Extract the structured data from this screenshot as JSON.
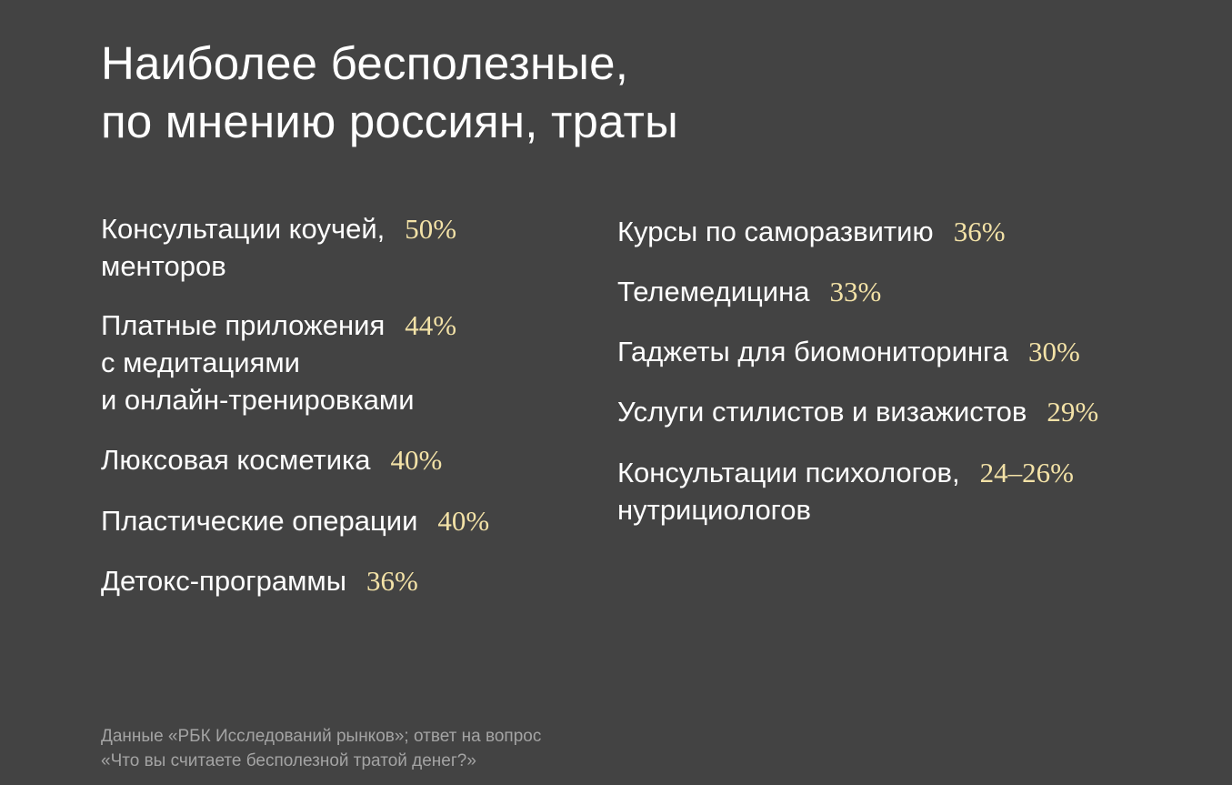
{
  "title": {
    "line1": "Наиболее бесполезные,",
    "line2": "по мнению россиян, траты"
  },
  "left_items": [
    {
      "line1": "Консультации коучей,",
      "line2": "менторов",
      "value": "50%"
    },
    {
      "line1": "Платные приложения",
      "line2": "с медитациями",
      "line3": "и онлайн-тренировками",
      "value": "44%"
    },
    {
      "line1": "Люксовая косметика",
      "value": "40%"
    },
    {
      "line1": "Пластические операции",
      "value": "40%"
    },
    {
      "line1": "Детокс-программы",
      "value": "36%"
    }
  ],
  "right_items": [
    {
      "line1": "Курсы по саморазвитию",
      "value": "36%"
    },
    {
      "line1": "Телемедицина",
      "value": "33%"
    },
    {
      "line1": "Гаджеты для биомониторинга",
      "value": "30%"
    },
    {
      "line1": "Услуги стилистов и визажистов",
      "value": "29%"
    },
    {
      "line1": "Консультации психологов,",
      "line2": "нутрициологов",
      "value": "24–26%"
    }
  ],
  "source": {
    "line1": "Данные «РБК Исследований рынков»; ответ на вопрос",
    "line2": "«Что вы считаете бесполезной тратой денег?»"
  },
  "colors": {
    "background": "#434343",
    "text": "#ffffff",
    "accent": "#f3e2a7",
    "muted": "#a4a4a4"
  }
}
